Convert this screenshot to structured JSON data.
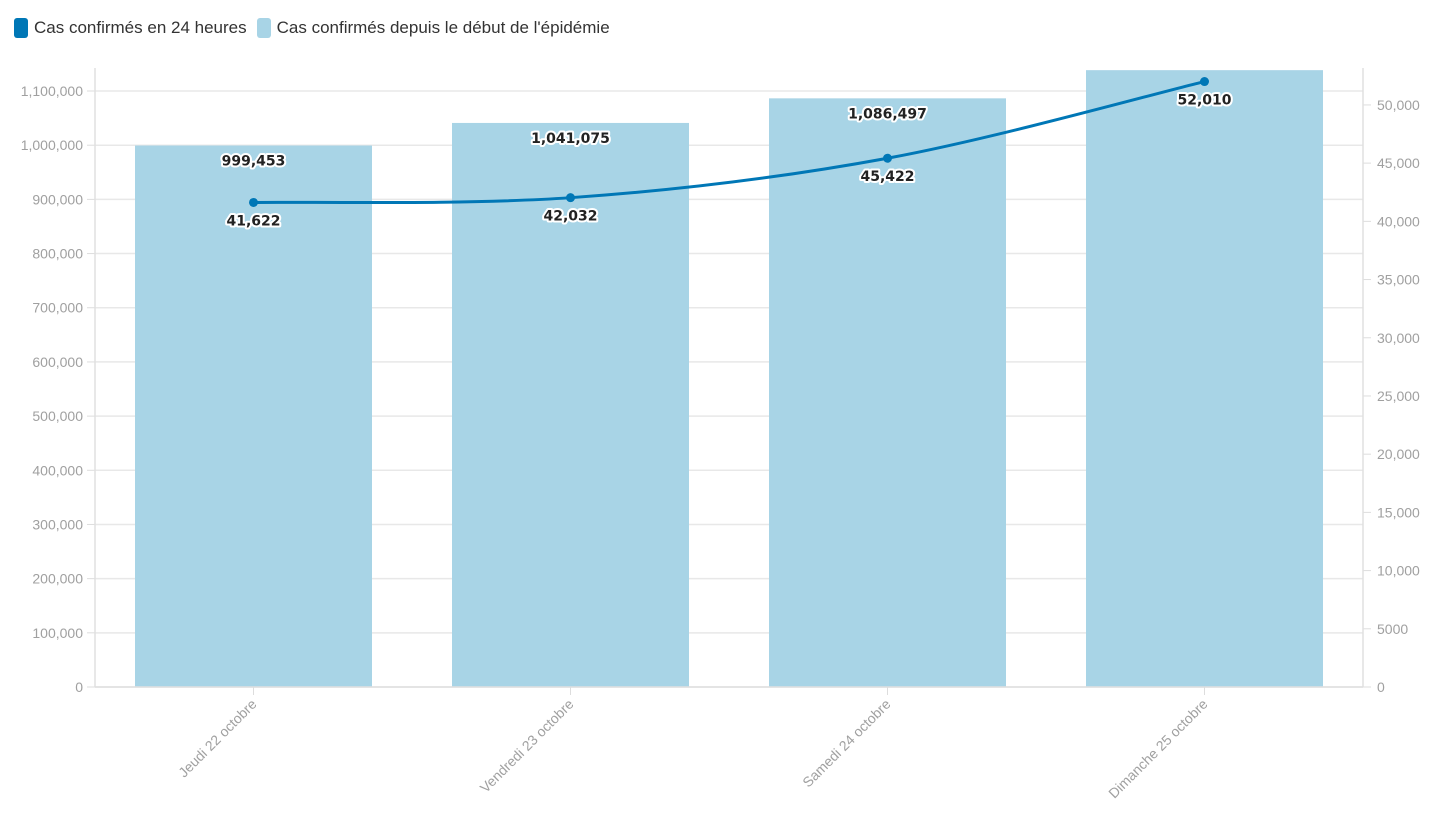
{
  "legend": [
    {
      "label": "Cas confirmés en 24 heures",
      "color": "#0077b6"
    },
    {
      "label": "Cas confirmés depuis le début de l'épidémie",
      "color": "#a8d4e6"
    }
  ],
  "chart_data": {
    "type": "bar+line",
    "categories": [
      "Jeudi 22 octobre",
      "Vendredi 23 octobre",
      "Samedi 24 octobre",
      "Dimanche 25 octobre"
    ],
    "series": [
      {
        "name": "Cas confirmés depuis le début de l'épidémie",
        "type": "bar",
        "axis": "left",
        "color": "#a8d4e6",
        "values": [
          999453,
          1041075,
          1086497,
          1138507
        ],
        "labels": [
          "999,453",
          "1,041,075",
          "1,086,497",
          null
        ]
      },
      {
        "name": "Cas confirmés en 24 heures",
        "type": "line",
        "axis": "right",
        "color": "#0077b6",
        "values": [
          41622,
          42032,
          45422,
          52010
        ],
        "labels": [
          "41,622",
          "42,032",
          "45,422",
          "52,010"
        ]
      }
    ],
    "left_axis": {
      "ylim": [
        0,
        1138800
      ],
      "ticks": [
        0,
        100000,
        200000,
        300000,
        400000,
        500000,
        600000,
        700000,
        800000,
        900000,
        1000000,
        1100000
      ],
      "tick_labels": [
        "0",
        "100,000",
        "200,000",
        "300,000",
        "400,000",
        "500,000",
        "600,000",
        "700,000",
        "800,000",
        "900,000",
        "1,000,000",
        "1,100,000"
      ]
    },
    "right_axis": {
      "ylim": [
        0,
        53000
      ],
      "ticks": [
        0,
        5000,
        10000,
        15000,
        20000,
        25000,
        30000,
        35000,
        40000,
        45000,
        50000
      ],
      "tick_labels": [
        "0",
        "5000",
        "10,000",
        "15,000",
        "20,000",
        "25,000",
        "30,000",
        "35,000",
        "40,000",
        "45,000",
        "50,000"
      ]
    },
    "grid": true,
    "legend_position": "top-left"
  }
}
